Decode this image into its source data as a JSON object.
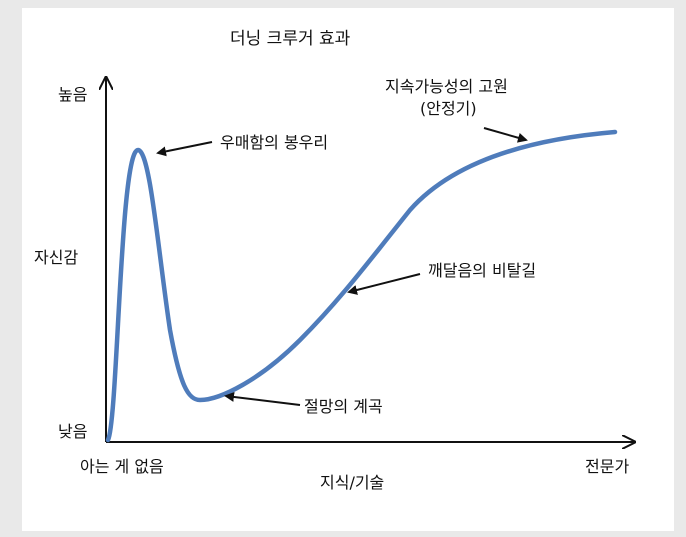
{
  "title": "더닝 크루거 효과",
  "y_axis": {
    "label": "자신감",
    "high": "높음",
    "low": "낮음"
  },
  "x_axis": {
    "label": "지식/기술",
    "start": "아는 게 없음",
    "end": "전문가"
  },
  "annotations": {
    "peak": "우매함의 봉우리",
    "valley": "절망의 계곡",
    "slope": "깨달음의 비탈길",
    "plateau_line1": "지속가능성의 고원",
    "plateau_line2": "(안정기)"
  },
  "colors": {
    "curve": "#4f7cbb",
    "axis": "#111111",
    "background": "#ffffff",
    "frame": "#e9e9e9"
  }
}
